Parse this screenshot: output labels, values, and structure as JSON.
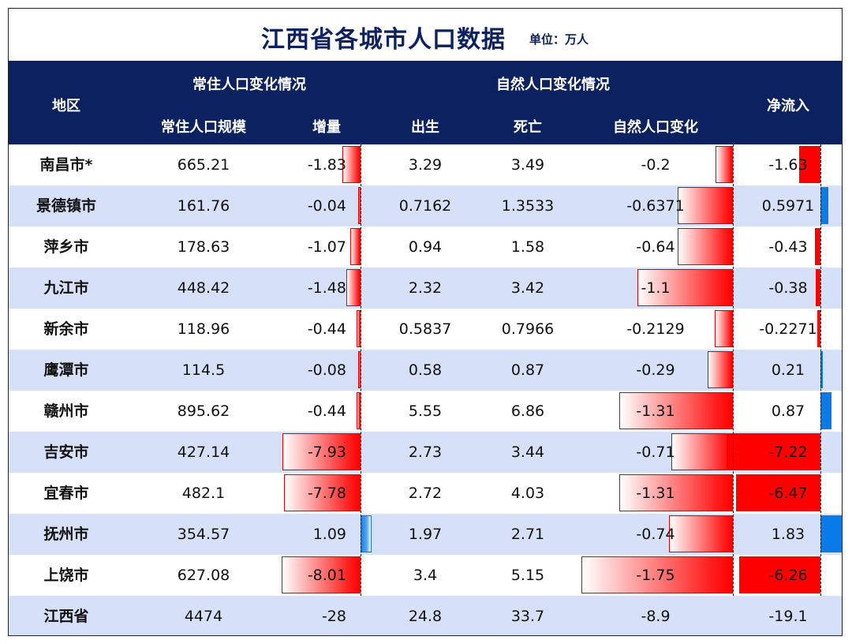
{
  "title": "江西省各城市人口数据",
  "unit": "单位：万人",
  "header": {
    "region": "地区",
    "group_resident": "常住人口变化情况",
    "group_natural": "自然人口变化情况",
    "net_inflow": "净流入",
    "resident_scale": "常住人口规模",
    "increase": "增量",
    "birth": "出生",
    "death": "死亡",
    "natural_change": "自然人口变化"
  },
  "chart_data": {
    "type": "table",
    "columns": [
      "地区",
      "常住人口规模",
      "增量",
      "出生",
      "死亡",
      "自然人口变化",
      "净流入"
    ],
    "rows": [
      {
        "region": "南昌市*",
        "scale": "665.21",
        "increase": "-1.83",
        "birth": "3.29",
        "death": "3.49",
        "natural": "-0.2",
        "net": "-1.63"
      },
      {
        "region": "景德镇市",
        "scale": "161.76",
        "increase": "-0.04",
        "birth": "0.7162",
        "death": "1.3533",
        "natural": "-0.6371",
        "net": "0.5971"
      },
      {
        "region": "萍乡市",
        "scale": "178.63",
        "increase": "-1.07",
        "birth": "0.94",
        "death": "1.58",
        "natural": "-0.64",
        "net": "-0.43"
      },
      {
        "region": "九江市",
        "scale": "448.42",
        "increase": "-1.48",
        "birth": "2.32",
        "death": "3.42",
        "natural": "-1.1",
        "net": "-0.38"
      },
      {
        "region": "新余市",
        "scale": "118.96",
        "increase": "-0.44",
        "birth": "0.5837",
        "death": "0.7966",
        "natural": "-0.2129",
        "net": "-0.2271"
      },
      {
        "region": "鹰潭市",
        "scale": "114.5",
        "increase": "-0.08",
        "birth": "0.58",
        "death": "0.87",
        "natural": "-0.29",
        "net": "0.21"
      },
      {
        "region": "赣州市",
        "scale": "895.62",
        "increase": "-0.44",
        "birth": "5.55",
        "death": "6.86",
        "natural": "-1.31",
        "net": "0.87"
      },
      {
        "region": "吉安市",
        "scale": "427.14",
        "increase": "-7.93",
        "birth": "2.73",
        "death": "3.44",
        "natural": "-0.71",
        "net": "-7.22"
      },
      {
        "region": "宜春市",
        "scale": "482.1",
        "increase": "-7.78",
        "birth": "2.72",
        "death": "4.03",
        "natural": "-1.31",
        "net": "-6.47"
      },
      {
        "region": "抚州市",
        "scale": "354.57",
        "increase": "1.09",
        "birth": "1.97",
        "death": "2.71",
        "natural": "-0.74",
        "net": "1.83"
      },
      {
        "region": "上饶市",
        "scale": "627.08",
        "increase": "-8.01",
        "birth": "3.4",
        "death": "5.15",
        "natural": "-1.75",
        "net": "-6.26"
      },
      {
        "region": "江西省",
        "scale": "4474",
        "increase": "-28",
        "birth": "24.8",
        "death": "33.7",
        "natural": "-8.9",
        "net": "-19.1"
      }
    ],
    "bar_columns": [
      "increase",
      "natural",
      "net"
    ],
    "bar_rows_count": 11,
    "colors": {
      "negative": "#ff0000",
      "positive": "#1a7fe0",
      "header_bg": "#0b2160",
      "alt_row": "#d6e0f8"
    }
  }
}
